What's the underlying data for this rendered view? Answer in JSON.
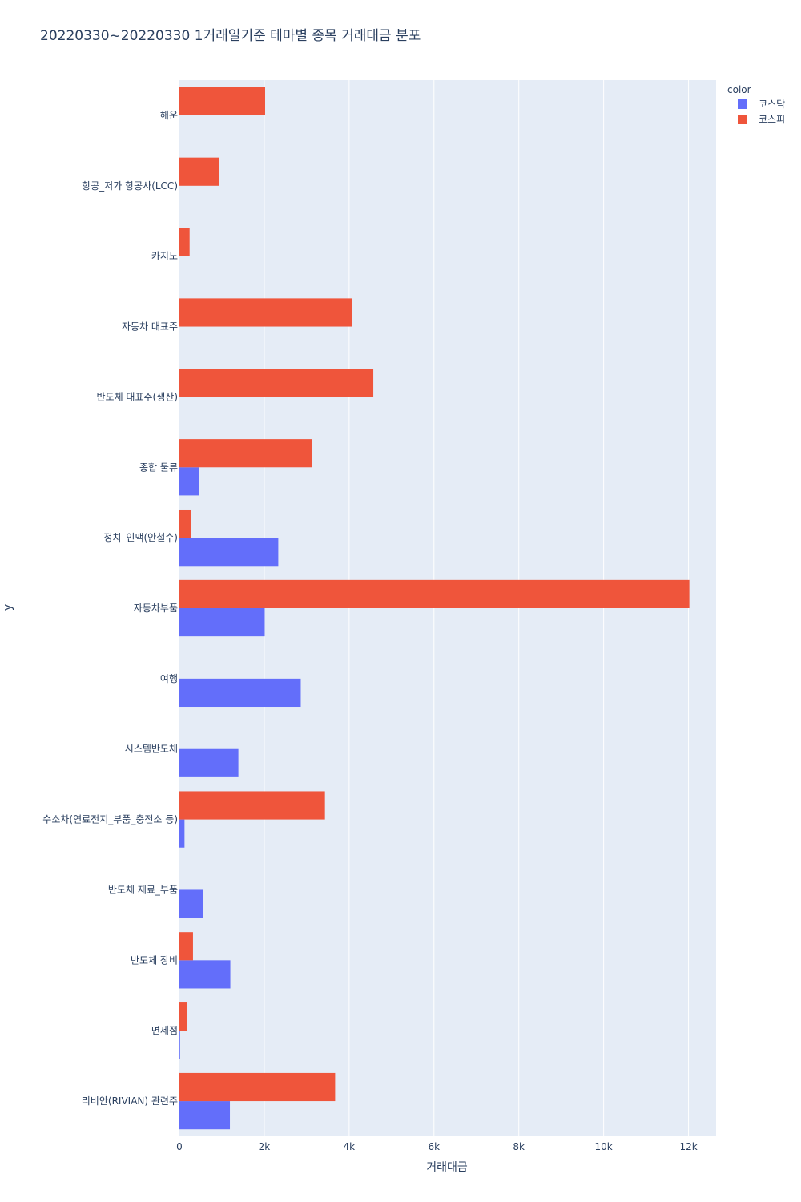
{
  "chart_data": {
    "type": "bar",
    "orientation": "horizontal",
    "title": "20220330~20220330 1거래일기준 테마별 종목 거래대금 분포",
    "xlabel": "거래대금",
    "ylabel": "y",
    "xlim": [
      0,
      12650
    ],
    "xticks": [
      0,
      2000,
      4000,
      6000,
      8000,
      10000,
      12000
    ],
    "xtick_labels": [
      "0",
      "2k",
      "4k",
      "6k",
      "8k",
      "10k",
      "12k"
    ],
    "grid": true,
    "legend": {
      "title": "color",
      "position": "top-right"
    },
    "categories": [
      "해운",
      "항공_저가 항공사(LCC)",
      "카지노",
      "자동차 대표주",
      "반도체 대표주(생산)",
      "종합 물류",
      "정치_인맥(안철수)",
      "자동차부품",
      "여행",
      "시스템반도체",
      "수소차(연료전지_부품_충전소 등)",
      "반도체 재료_부품",
      "반도체 장비",
      "면세점",
      "리비안(RIVIAN) 관련주"
    ],
    "series": [
      {
        "name": "코스닥",
        "color": "#636efa",
        "values": [
          0,
          0,
          0,
          0,
          0,
          470,
          2330,
          2010,
          2860,
          1390,
          120,
          550,
          1200,
          15,
          1190
        ]
      },
      {
        "name": "코스피",
        "color": "#ef553b",
        "values": [
          2020,
          930,
          240,
          4060,
          4570,
          3120,
          270,
          12020,
          0,
          0,
          3430,
          0,
          320,
          180,
          3670
        ]
      }
    ]
  }
}
